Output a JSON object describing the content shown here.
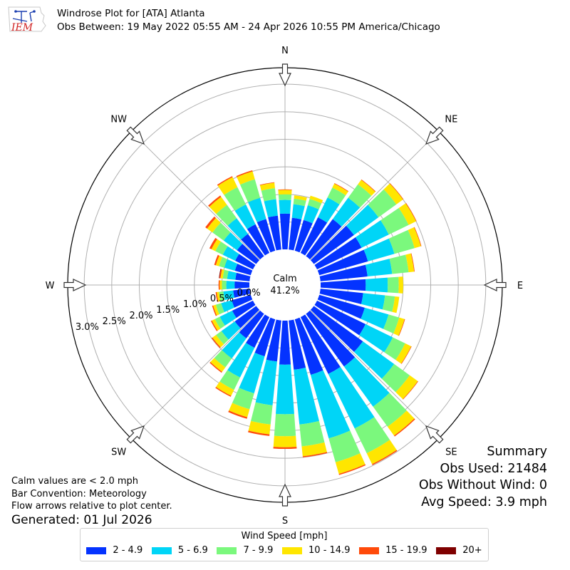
{
  "header": {
    "logo_text": "IEM",
    "title": "Windrose Plot for [ATA] Atlanta",
    "subtitle": "Obs Between: 19 May 2022 05:55 AM - 24 Apr 2026 10:55 PM America/Chicago"
  },
  "summary": {
    "heading": "Summary",
    "obs_used": "Obs Used: 21484",
    "obs_without_wind": "Obs Without Wind: 0",
    "avg_speed": "Avg Speed: 3.9 mph"
  },
  "notes": {
    "calm_note": "Calm values are < 2.0 mph",
    "bar_convention": "Bar Convention: Meteorology",
    "flow_arrows": "Flow arrows relative to plot center.",
    "generated": "Generated: 01 Jul 2026"
  },
  "legend": {
    "title": "Wind Speed [mph]",
    "items": [
      {
        "label": "2 - 4.9",
        "color": "#0433ff"
      },
      {
        "label": "5 - 6.9",
        "color": "#00d5f7"
      },
      {
        "label": "7 - 9.9",
        "color": "#7bf87d"
      },
      {
        "label": "10 - 14.9",
        "color": "#ffe600"
      },
      {
        "label": "15 - 19.9",
        "color": "#ff4a0a"
      },
      {
        "label": "20+",
        "color": "#7f0000"
      }
    ]
  },
  "chart_data": {
    "type": "windrose",
    "calm_label": "Calm",
    "calm_value": "41.2%",
    "radial_ticks": [
      "0.0%",
      "0.5%",
      "1.0%",
      "1.5%",
      "2.0%",
      "2.5%",
      "3.0%"
    ],
    "radial_max": 3.3,
    "compass_labels": [
      "N",
      "NE",
      "E",
      "SE",
      "S",
      "SW",
      "W",
      "NW"
    ],
    "direction_step_deg": 10,
    "series": [
      {
        "name": "2 - 4.9",
        "values": [
          0.65,
          0.58,
          0.58,
          0.72,
          0.83,
          0.9,
          0.9,
          0.92,
          0.86,
          0.82,
          0.78,
          0.86,
          0.98,
          1.1,
          1.18,
          1.15,
          1.05,
          0.9,
          0.8,
          0.75,
          0.7,
          0.62,
          0.55,
          0.48,
          0.42,
          0.36,
          0.3,
          0.27,
          0.26,
          0.3,
          0.36,
          0.43,
          0.5,
          0.58,
          0.6,
          0.62
        ]
      },
      {
        "name": "5 - 6.9",
        "values": [
          0.25,
          0.25,
          0.28,
          0.4,
          0.48,
          0.55,
          0.55,
          0.5,
          0.45,
          0.4,
          0.4,
          0.45,
          0.55,
          0.7,
          0.9,
          1.1,
          1.2,
          1.0,
          0.9,
          0.8,
          0.7,
          0.6,
          0.45,
          0.3,
          0.25,
          0.2,
          0.18,
          0.15,
          0.15,
          0.2,
          0.25,
          0.3,
          0.35,
          0.4,
          0.4,
          0.3
        ]
      },
      {
        "name": "7 - 9.9",
        "values": [
          0.1,
          0.1,
          0.12,
          0.2,
          0.3,
          0.4,
          0.4,
          0.38,
          0.3,
          0.2,
          0.18,
          0.2,
          0.25,
          0.35,
          0.45,
          0.5,
          0.45,
          0.4,
          0.4,
          0.35,
          0.3,
          0.25,
          0.2,
          0.12,
          0.1,
          0.1,
          0.08,
          0.08,
          0.08,
          0.1,
          0.15,
          0.25,
          0.3,
          0.35,
          0.35,
          0.2
        ]
      },
      {
        "name": "10 - 14.9",
        "values": [
          0.08,
          0.06,
          0.06,
          0.08,
          0.1,
          0.15,
          0.15,
          0.12,
          0.1,
          0.08,
          0.08,
          0.1,
          0.12,
          0.18,
          0.2,
          0.22,
          0.22,
          0.18,
          0.2,
          0.18,
          0.15,
          0.12,
          0.1,
          0.08,
          0.06,
          0.05,
          0.04,
          0.04,
          0.04,
          0.06,
          0.08,
          0.12,
          0.18,
          0.2,
          0.15,
          0.1
        ]
      },
      {
        "name": "15 - 19.9",
        "values": [
          0.01,
          0.0,
          0.0,
          0.01,
          0.01,
          0.01,
          0.01,
          0.01,
          0.01,
          0.0,
          0.0,
          0.01,
          0.01,
          0.01,
          0.02,
          0.02,
          0.02,
          0.02,
          0.03,
          0.03,
          0.03,
          0.02,
          0.02,
          0.02,
          0.02,
          0.02,
          0.02,
          0.02,
          0.02,
          0.03,
          0.04,
          0.04,
          0.03,
          0.02,
          0.02,
          0.01
        ]
      },
      {
        "name": "20+",
        "values": [
          0.0,
          0.0,
          0.0,
          0.0,
          0.0,
          0.0,
          0.0,
          0.0,
          0.0,
          0.0,
          0.0,
          0.0,
          0.0,
          0.0,
          0.0,
          0.0,
          0.0,
          0.0,
          0.0,
          0.0,
          0.0,
          0.0,
          0.0,
          0.0,
          0.0,
          0.0,
          0.0,
          0.0,
          0.01,
          0.0,
          0.0,
          0.0,
          0.0,
          0.0,
          0.0,
          0.0
        ]
      }
    ]
  }
}
